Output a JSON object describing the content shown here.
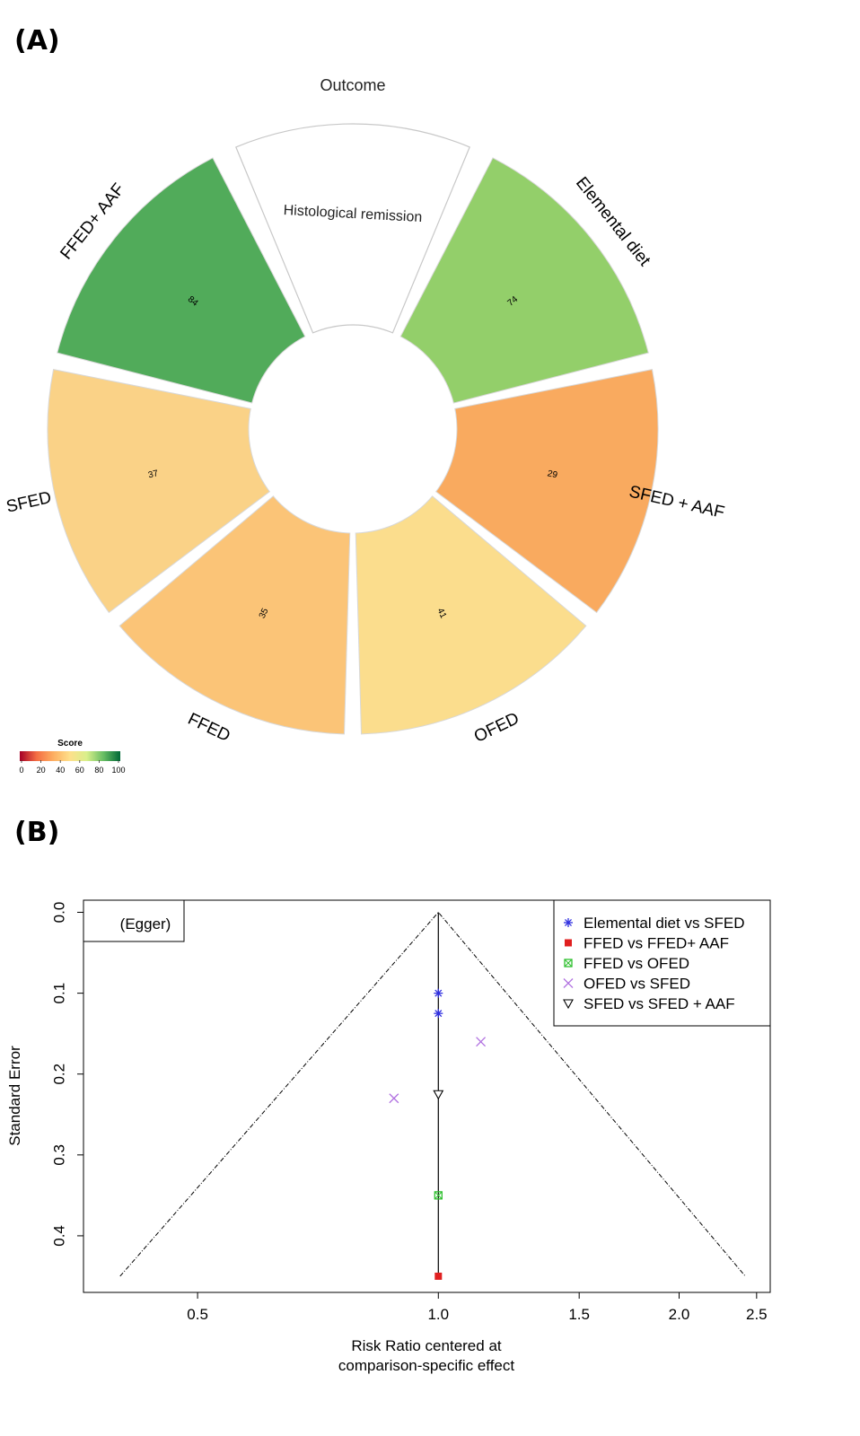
{
  "panel_a_label": "(A)",
  "panel_b_label": "(B)",
  "chart_data": [
    {
      "type": "radial_score",
      "title": "Outcome",
      "outcome_label": "Histological remission",
      "segments": [
        {
          "name": "Elemental diet",
          "score": 74,
          "color": "#93cf6a"
        },
        {
          "name": "SFED + AAF",
          "score": 29,
          "color": "#f9aa5f"
        },
        {
          "name": "OFED",
          "score": 41,
          "color": "#fbdd8d"
        },
        {
          "name": "FFED",
          "score": 35,
          "color": "#fbc477"
        },
        {
          "name": "SFED",
          "score": 37,
          "color": "#fad287"
        },
        {
          "name": "FFED+ AAF",
          "score": 84,
          "color": "#51ab5a"
        }
      ],
      "legend": {
        "title": "Score",
        "ticks": [
          "0",
          "20",
          "40",
          "60",
          "80",
          "100"
        ],
        "colors": [
          "#a50026",
          "#f46d43",
          "#fdae61",
          "#fee08b",
          "#d9ef8b",
          "#66bd63",
          "#006837"
        ]
      }
    },
    {
      "type": "scatter",
      "subtitle": "(Egger)",
      "xlabel_line1": "Risk Ratio centered at",
      "xlabel_line2": "comparison-specific effect",
      "ylabel": "Standard Error",
      "x_scale": "log",
      "xlim": [
        0.36,
        2.6
      ],
      "ylim": [
        0.47,
        -0.015
      ],
      "x_ticks": [
        {
          "value": 0.5,
          "label": "0.5"
        },
        {
          "value": 1.0,
          "label": "1.0"
        },
        {
          "value": 1.5,
          "label": "1.5"
        },
        {
          "value": 2.0,
          "label": "2.0"
        },
        {
          "value": 2.5,
          "label": "2.5"
        }
      ],
      "y_ticks": [
        {
          "value": 0.0,
          "label": "0.0"
        },
        {
          "value": 0.1,
          "label": "0.1"
        },
        {
          "value": 0.2,
          "label": "0.2"
        },
        {
          "value": 0.3,
          "label": "0.3"
        },
        {
          "value": 0.4,
          "label": "0.4"
        }
      ],
      "funnel": {
        "apex_x": 1.0,
        "apex_y": 0.0,
        "left_x": 0.4,
        "right_x": 2.42,
        "bottom_y": 0.45
      },
      "vertical_line": {
        "x": 1.0,
        "y_from": 0.0,
        "y_to": 0.45
      },
      "legend_position": "top-right",
      "series": [
        {
          "name": "Elemental diet vs SFED",
          "marker": "asterisk",
          "color": "#3030e0",
          "points": [
            {
              "x": 1.0,
              "y": 0.1
            },
            {
              "x": 1.0,
              "y": 0.125
            }
          ]
        },
        {
          "name": "FFED vs FFED+ AAF",
          "marker": "square-filled",
          "color": "#e02020",
          "points": [
            {
              "x": 1.0,
              "y": 0.45
            }
          ]
        },
        {
          "name": "FFED vs OFED",
          "marker": "square-x",
          "color": "#30c030",
          "points": [
            {
              "x": 1.0,
              "y": 0.35
            }
          ]
        },
        {
          "name": "OFED vs SFED",
          "marker": "cross",
          "color": "#b070e0",
          "points": [
            {
              "x": 1.13,
              "y": 0.16
            },
            {
              "x": 0.88,
              "y": 0.23
            }
          ]
        },
        {
          "name": "SFED vs SFED + AAF",
          "marker": "triangle-down",
          "color": "#000000",
          "points": [
            {
              "x": 1.0,
              "y": 0.225
            }
          ]
        }
      ]
    }
  ]
}
